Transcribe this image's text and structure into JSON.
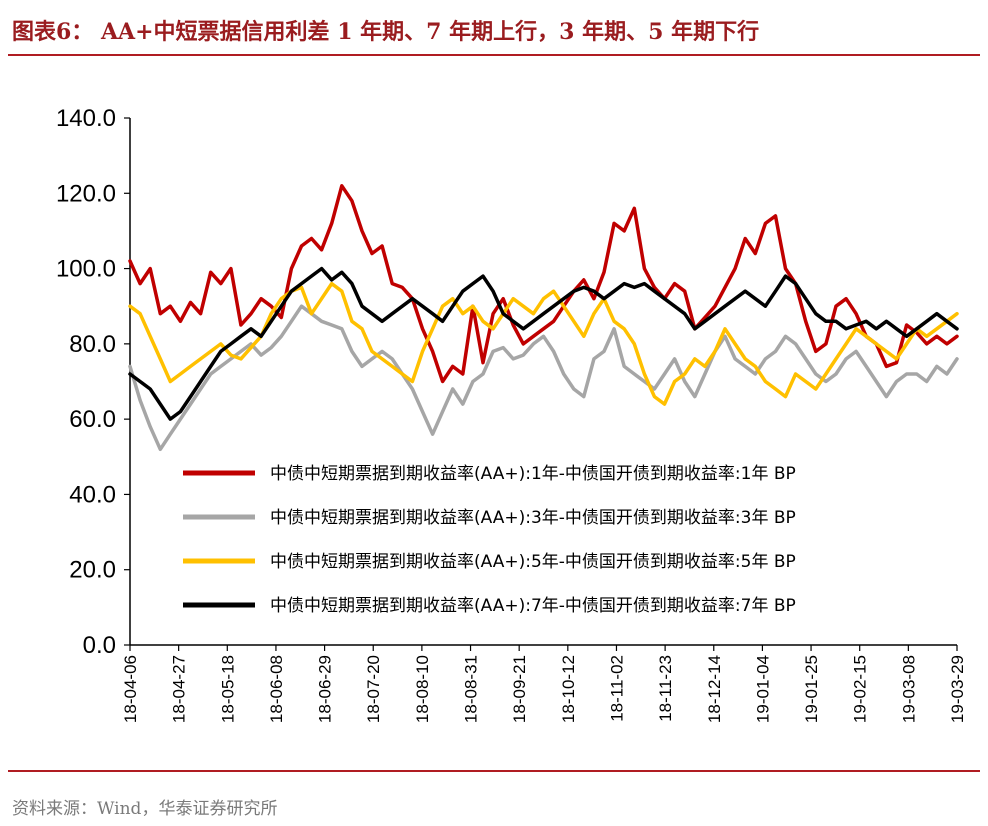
{
  "title": "图表6： AA+中短票据信用利差 1 年期、7 年期上行，3 年期、5 年期下行",
  "source": "资料来源：Wind，华泰证券研究所",
  "chart_data": {
    "type": "line",
    "ylim": [
      0,
      140
    ],
    "y_ticks": [
      "0.0",
      "20.0",
      "40.0",
      "60.0",
      "80.0",
      "100.0",
      "120.0",
      "140.0"
    ],
    "x_tick_labels": [
      "18-04-06",
      "18-04-27",
      "18-05-18",
      "18-06-08",
      "18-06-29",
      "18-07-20",
      "18-08-10",
      "18-08-31",
      "18-09-21",
      "18-10-12",
      "18-11-02",
      "18-11-23",
      "18-12-14",
      "19-01-04",
      "19-01-25",
      "19-02-15",
      "19-03-08",
      "19-03-29"
    ],
    "grid": false,
    "legend_position": "bottom-right",
    "series": [
      {
        "name": "中债中短期票据到期收益率(AA+):1年-中债国开债到期收益率:1年 BP",
        "color": "#c00000",
        "values": [
          102,
          96,
          100,
          88,
          90,
          86,
          91,
          88,
          99,
          96,
          100,
          85,
          88,
          92,
          90,
          87,
          100,
          106,
          108,
          105,
          112,
          122,
          118,
          110,
          104,
          106,
          96,
          95,
          92,
          84,
          78,
          70,
          74,
          72,
          90,
          75,
          88,
          92,
          85,
          80,
          82,
          84,
          86,
          90,
          94,
          97,
          92,
          99,
          112,
          110,
          116,
          100,
          95,
          92,
          96,
          94,
          84,
          87,
          90,
          95,
          100,
          108,
          104,
          112,
          114,
          100,
          96,
          86,
          78,
          80,
          90,
          92,
          88,
          82,
          80,
          74,
          75,
          85,
          83,
          80,
          82,
          80,
          82
        ]
      },
      {
        "name": "中债中短期票据到期收益率(AA+):3年-中债国开债到期收益率:3年 BP",
        "color": "#a6a6a6",
        "values": [
          74,
          65,
          58,
          52,
          56,
          60,
          64,
          68,
          72,
          74,
          76,
          78,
          80,
          77,
          79,
          82,
          86,
          90,
          88,
          86,
          85,
          84,
          78,
          74,
          76,
          78,
          76,
          72,
          68,
          62,
          56,
          62,
          68,
          64,
          70,
          72,
          78,
          79,
          76,
          77,
          80,
          82,
          78,
          72,
          68,
          66,
          76,
          78,
          84,
          74,
          72,
          70,
          68,
          72,
          76,
          70,
          66,
          72,
          78,
          82,
          76,
          74,
          72,
          76,
          78,
          82,
          80,
          76,
          72,
          70,
          72,
          76,
          78,
          74,
          70,
          66,
          70,
          72,
          72,
          70,
          74,
          72,
          76
        ]
      },
      {
        "name": "中债中短期票据到期收益率(AA+):5年-中债国开债到期收益率:5年 BP",
        "color": "#ffc000",
        "values": [
          90,
          88,
          82,
          76,
          70,
          72,
          74,
          76,
          78,
          80,
          77,
          76,
          79,
          82,
          88,
          92,
          94,
          95,
          88,
          92,
          96,
          94,
          86,
          84,
          78,
          76,
          74,
          72,
          70,
          78,
          84,
          90,
          92,
          88,
          90,
          86,
          84,
          88,
          92,
          90,
          88,
          92,
          94,
          90,
          86,
          82,
          88,
          92,
          86,
          84,
          80,
          72,
          66,
          64,
          70,
          72,
          76,
          74,
          78,
          84,
          80,
          76,
          74,
          70,
          68,
          66,
          72,
          70,
          68,
          72,
          76,
          80,
          84,
          82,
          80,
          78,
          76,
          80,
          84,
          82,
          84,
          86,
          88
        ]
      },
      {
        "name": "中债中短期票据到期收益率(AA+):7年-中债国开债到期收益率:7年 BP",
        "color": "#000000",
        "values": [
          72,
          70,
          68,
          64,
          60,
          62,
          66,
          70,
          74,
          78,
          80,
          82,
          84,
          82,
          86,
          90,
          94,
          96,
          98,
          100,
          97,
          99,
          96,
          90,
          88,
          86,
          88,
          90,
          92,
          90,
          88,
          86,
          90,
          94,
          96,
          98,
          94,
          88,
          86,
          84,
          86,
          88,
          90,
          92,
          94,
          95,
          94,
          92,
          94,
          96,
          95,
          96,
          94,
          92,
          90,
          88,
          84,
          86,
          88,
          90,
          92,
          94,
          92,
          90,
          94,
          98,
          96,
          92,
          88,
          86,
          86,
          84,
          85,
          86,
          84,
          86,
          84,
          82,
          84,
          86,
          88,
          86,
          84
        ]
      }
    ]
  }
}
